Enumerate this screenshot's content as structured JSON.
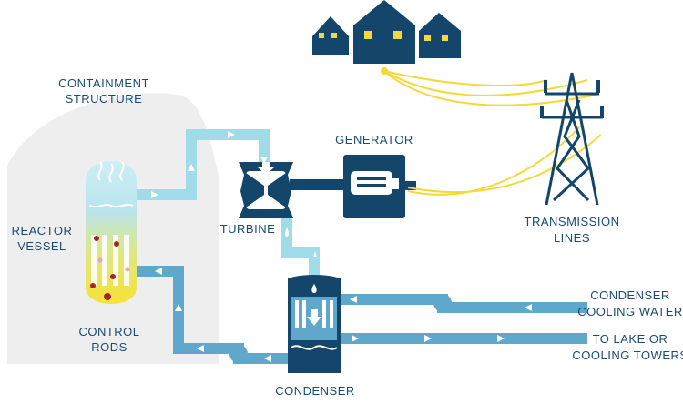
{
  "labels": {
    "containment_line1": "CONTAINMENT",
    "containment_line2": "STRUCTURE",
    "generator": "GENERATOR",
    "turbine": "TURBINE",
    "reactor_line1": "REACTOR",
    "reactor_line2": "VESSEL",
    "control_line1": "CONTROL",
    "control_line2": "RODS",
    "transmission_line1": "TRANSMISSION",
    "transmission_line2": "LINES",
    "condenser": "CONDENSER",
    "cooling_in_line1": "CONDENSER",
    "cooling_in_line2": "COOLING WATER",
    "cooling_out_line1": "TO LAKE OR",
    "cooling_out_line2": "COOLING TOWERS"
  },
  "colors": {
    "navy": "#14466b",
    "steam_pipe": "#9fdbe9",
    "water_pipe": "#5fa8cb",
    "power_line": "#f5d83a",
    "containment": "#eeeeee",
    "window": "#f5d83a"
  },
  "icons": [
    "house-icon",
    "transmission-tower-icon",
    "turbine-icon",
    "generator-icon",
    "flow-arrow-icon"
  ]
}
